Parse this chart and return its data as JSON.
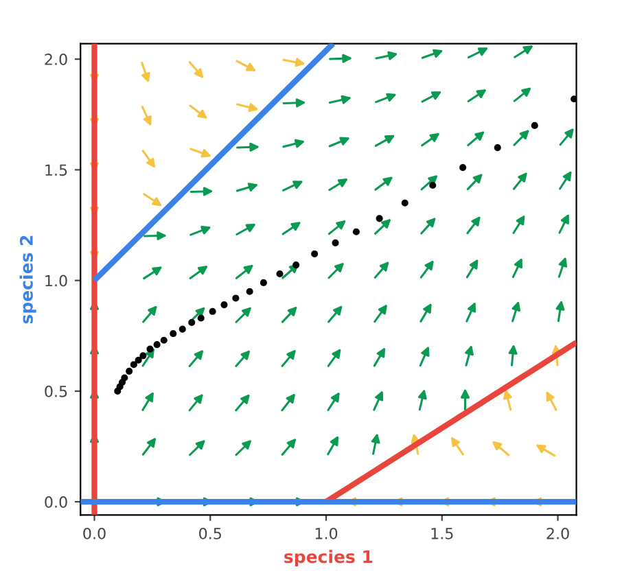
{
  "chart_data": {
    "type": "line",
    "xlabel": "species 1",
    "ylabel": "species 2",
    "xlim": [
      -0.06,
      2.08
    ],
    "ylim": [
      -0.06,
      2.07
    ],
    "xticks": [
      {
        "value": 0,
        "label": "0.0"
      },
      {
        "value": 0.5,
        "label": "0.5"
      },
      {
        "value": 1,
        "label": "1.0"
      },
      {
        "value": 1.5,
        "label": "1.5"
      },
      {
        "value": 2,
        "label": "2.0"
      }
    ],
    "yticks": [
      {
        "value": 0,
        "label": "0.0"
      },
      {
        "value": 0.5,
        "label": "0.5"
      },
      {
        "value": 1,
        "label": "1.0"
      },
      {
        "value": 1.5,
        "label": "1.5"
      },
      {
        "value": 2,
        "label": "2.0"
      }
    ],
    "grid": false,
    "legend": false,
    "series": [
      {
        "color": "#e8453c",
        "x": [
          0,
          0
        ],
        "values": [
          -0.06,
          2.07
        ]
      },
      {
        "color": "#e8453c",
        "x": [
          1,
          2.08
        ],
        "values": [
          0,
          0.72
        ]
      },
      {
        "color": "#3b82e8",
        "x": [
          -0.06,
          2.08
        ],
        "values": [
          0,
          0
        ]
      },
      {
        "color": "#3b82e8",
        "x": [
          0,
          1.03
        ],
        "values": [
          1,
          2.07
        ]
      },
      {
        "type": "scatter",
        "color": "#000000",
        "x": [
          0.1,
          0.11,
          0.12,
          0.13,
          0.15,
          0.17,
          0.19,
          0.21,
          0.24,
          0.27,
          0.3,
          0.34,
          0.38,
          0.42,
          0.46,
          0.51,
          0.56,
          0.61,
          0.67,
          0.73,
          0.8,
          0.87,
          0.95,
          1.04,
          1.13,
          1.23,
          1.34,
          1.46,
          1.59,
          1.74,
          1.9,
          2.07
        ],
        "values": [
          0.5,
          0.52,
          0.54,
          0.56,
          0.59,
          0.62,
          0.64,
          0.66,
          0.69,
          0.71,
          0.73,
          0.76,
          0.78,
          0.81,
          0.83,
          0.86,
          0.89,
          0.92,
          0.95,
          0.99,
          1.03,
          1.07,
          1.12,
          1.17,
          1.22,
          1.28,
          1.35,
          1.43,
          1.51,
          1.6,
          1.7,
          1.82
        ]
      }
    ]
  }
}
